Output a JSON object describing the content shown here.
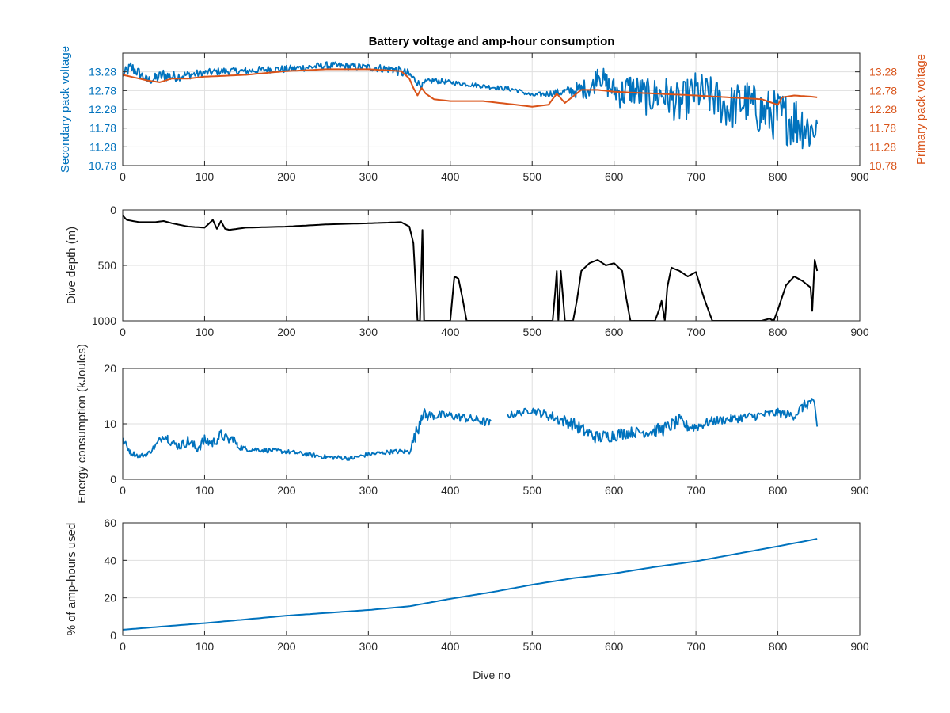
{
  "figure": {
    "title": "Battery voltage and amp-hour consumption",
    "x_label": "Dive no",
    "colors": {
      "blue": "#0072BD",
      "orange": "#D95319",
      "black": "#000000",
      "grid": "#dfdfdf",
      "axis": "#262626"
    }
  },
  "chart_data": [
    {
      "type": "line",
      "panel": "voltage",
      "title": "Battery voltage and amp-hour consumption",
      "xlabel": "",
      "ylabel": "Secondary pack voltage",
      "ylabel_right": "Primary pack voltage",
      "xlim": [
        0,
        900
      ],
      "ylim": [
        10.78,
        13.78
      ],
      "xticks": [
        "0",
        "100",
        "200",
        "300",
        "400",
        "500",
        "600",
        "700",
        "800",
        "900"
      ],
      "yticks": [
        "10.78",
        "11.28",
        "11.78",
        "12.28",
        "12.78",
        "13.28"
      ],
      "yticks_right": [
        "10.78",
        "11.28",
        "11.78",
        "12.28",
        "12.78",
        "13.28"
      ],
      "grid": true,
      "series": [
        {
          "axis": "left",
          "color": "#0072BD",
          "x": [
            0,
            5,
            10,
            20,
            30,
            40,
            50,
            60,
            80,
            100,
            120,
            150,
            180,
            200,
            250,
            300,
            330,
            350,
            360,
            365,
            370,
            380,
            400,
            420,
            440,
            460,
            480,
            500,
            520,
            540,
            560,
            575,
            580,
            590,
            600,
            610,
            620,
            640,
            660,
            680,
            700,
            720,
            740,
            760,
            780,
            800,
            820,
            830,
            840,
            848
          ],
          "y": [
            13.2,
            13.3,
            13.4,
            13.25,
            13.05,
            13.1,
            13.2,
            13.15,
            13.2,
            13.25,
            13.3,
            13.3,
            13.35,
            13.35,
            13.45,
            13.4,
            13.35,
            13.2,
            13.0,
            12.9,
            13.0,
            13.05,
            13.0,
            12.95,
            12.9,
            12.85,
            12.8,
            12.65,
            12.7,
            12.75,
            12.8,
            12.9,
            13.3,
            12.95,
            12.8,
            12.7,
            12.85,
            12.6,
            12.7,
            12.4,
            12.75,
            12.6,
            12.3,
            12.5,
            12.2,
            12.1,
            12.0,
            11.9,
            11.7,
            11.9
          ],
          "noise": [
            0.12,
            0.15,
            0.18,
            0.15,
            0.12,
            0.15,
            0.18,
            0.15,
            0.12,
            0.1,
            0.1,
            0.1,
            0.1,
            0.1,
            0.1,
            0.1,
            0.12,
            0.15,
            0.1,
            0.08,
            0.08,
            0.08,
            0.06,
            0.06,
            0.06,
            0.06,
            0.06,
            0.06,
            0.08,
            0.12,
            0.25,
            0.3,
            0.3,
            0.35,
            0.35,
            0.45,
            0.45,
            0.5,
            0.5,
            0.55,
            0.55,
            0.55,
            0.6,
            0.6,
            0.65,
            0.7,
            0.75,
            0.7,
            0.65,
            0.6
          ]
        },
        {
          "axis": "right",
          "color": "#D95319",
          "x": [
            0,
            10,
            30,
            45,
            60,
            80,
            100,
            150,
            200,
            250,
            300,
            340,
            350,
            355,
            360,
            365,
            370,
            380,
            400,
            420,
            440,
            460,
            480,
            500,
            520,
            530,
            540,
            560,
            580,
            600,
            650,
            700,
            740,
            780,
            800,
            805,
            820,
            840,
            848
          ],
          "y": [
            13.2,
            13.15,
            13.05,
            13.0,
            13.1,
            13.1,
            13.15,
            13.2,
            13.3,
            13.35,
            13.35,
            13.3,
            13.1,
            12.85,
            12.65,
            12.85,
            12.7,
            12.55,
            12.5,
            12.5,
            12.5,
            12.45,
            12.4,
            12.35,
            12.4,
            12.7,
            12.45,
            12.8,
            12.8,
            12.75,
            12.7,
            12.65,
            12.6,
            12.55,
            12.4,
            12.6,
            12.65,
            12.62,
            12.6
          ]
        }
      ]
    },
    {
      "type": "line",
      "panel": "depth",
      "xlabel": "",
      "ylabel": "Dive depth (m)",
      "xlim": [
        0,
        900
      ],
      "ylim": [
        0,
        1000
      ],
      "y_reversed": true,
      "xticks": [
        "0",
        "100",
        "200",
        "300",
        "400",
        "500",
        "600",
        "700",
        "800",
        "900"
      ],
      "yticks": [
        "0",
        "500",
        "1000"
      ],
      "grid": true,
      "series": [
        {
          "color": "#000000",
          "x": [
            0,
            5,
            20,
            40,
            50,
            60,
            80,
            100,
            110,
            115,
            120,
            125,
            130,
            150,
            200,
            250,
            300,
            340,
            350,
            355,
            360,
            363,
            366,
            368,
            370,
            375,
            400,
            405,
            410,
            415,
            420,
            450,
            500,
            525,
            528,
            530,
            532,
            535,
            540,
            550,
            555,
            560,
            570,
            580,
            590,
            600,
            610,
            615,
            620,
            650,
            655,
            658,
            662,
            665,
            670,
            680,
            690,
            700,
            710,
            720,
            750,
            780,
            790,
            795,
            800,
            810,
            820,
            830,
            840,
            842,
            845,
            848
          ],
          "y": [
            50,
            90,
            110,
            110,
            100,
            120,
            150,
            160,
            90,
            170,
            100,
            170,
            180,
            160,
            150,
            130,
            120,
            110,
            150,
            300,
            1000,
            1000,
            180,
            1000,
            1000,
            1000,
            1000,
            600,
            620,
            800,
            1000,
            1000,
            1000,
            1000,
            750,
            550,
            1000,
            550,
            1000,
            1000,
            800,
            550,
            480,
            450,
            500,
            480,
            550,
            800,
            1000,
            1000,
            900,
            820,
            1000,
            700,
            520,
            550,
            600,
            560,
            800,
            1000,
            1000,
            1000,
            980,
            1000,
            900,
            680,
            600,
            640,
            700,
            910,
            450,
            550
          ]
        }
      ]
    },
    {
      "type": "line",
      "panel": "energy",
      "xlabel": "",
      "ylabel": "Energy consumption (kJoules)",
      "xlim": [
        0,
        900
      ],
      "ylim": [
        0,
        20
      ],
      "xticks": [
        "0",
        "100",
        "200",
        "300",
        "400",
        "500",
        "600",
        "700",
        "800",
        "900"
      ],
      "yticks": [
        "0",
        "10",
        "20"
      ],
      "grid": true,
      "series": [
        {
          "color": "#0072BD",
          "x": [
            0,
            5,
            10,
            20,
            30,
            40,
            50,
            55,
            60,
            70,
            80,
            90,
            100,
            110,
            120,
            130,
            135,
            140,
            150,
            200,
            250,
            280,
            300,
            330,
            350,
            360,
            365,
            370,
            380,
            400,
            420,
            440,
            450,
            455,
            470,
            500,
            520,
            550,
            560,
            580,
            600,
            620,
            640,
            650,
            660,
            680,
            690,
            700,
            720,
            750,
            800,
            820,
            830,
            840,
            845,
            848
          ],
          "y": [
            7.0,
            6.0,
            4.8,
            4.2,
            4.5,
            6.0,
            8.0,
            7.5,
            6.5,
            6.0,
            7.0,
            5.5,
            7.0,
            6.5,
            8.0,
            7.0,
            7.5,
            6.0,
            5.5,
            5.0,
            4.0,
            3.8,
            4.5,
            5.0,
            5.0,
            9.0,
            12.0,
            11.5,
            11.5,
            11.5,
            11.0,
            10.5,
            10.0,
            null,
            11.5,
            12.5,
            11.5,
            10.0,
            9.0,
            7.5,
            8.0,
            8.5,
            8.5,
            8.8,
            9.0,
            10.5,
            9.5,
            9.5,
            10.5,
            11.0,
            12.0,
            11.5,
            13.0,
            14.0,
            13.0,
            9.5
          ],
          "noise": [
            0.6,
            0.6,
            0.5,
            0.4,
            0.4,
            0.6,
            0.8,
            0.8,
            0.8,
            0.8,
            1.0,
            1.0,
            1.0,
            1.0,
            1.0,
            0.8,
            0.8,
            0.6,
            0.5,
            0.4,
            0.4,
            0.4,
            0.4,
            0.4,
            0.5,
            1.5,
            1.5,
            1.0,
            0.8,
            0.8,
            0.8,
            0.8,
            0.8,
            0.8,
            0.6,
            0.6,
            1.0,
            1.2,
            1.2,
            1.2,
            1.2,
            1.0,
            1.0,
            1.2,
            1.2,
            1.2,
            1.0,
            1.0,
            0.8,
            0.8,
            0.8,
            0.8,
            1.0,
            1.0,
            1.0,
            0.6
          ]
        }
      ]
    },
    {
      "type": "line",
      "panel": "amphours",
      "xlabel": "Dive no",
      "ylabel": "% of amp-hours used",
      "xlim": [
        0,
        900
      ],
      "ylim": [
        0,
        60
      ],
      "xticks": [
        "0",
        "100",
        "200",
        "300",
        "400",
        "500",
        "600",
        "700",
        "800",
        "900"
      ],
      "yticks": [
        "0",
        "20",
        "40",
        "60"
      ],
      "grid": true,
      "series": [
        {
          "color": "#0072BD",
          "x": [
            0,
            100,
            200,
            300,
            350,
            400,
            450,
            500,
            550,
            600,
            650,
            700,
            750,
            800,
            848
          ],
          "y": [
            3,
            6.5,
            10.5,
            13.5,
            15.5,
            19.5,
            23,
            27,
            30.5,
            33,
            36.5,
            39.5,
            43.5,
            47.5,
            51.5
          ]
        }
      ]
    }
  ]
}
